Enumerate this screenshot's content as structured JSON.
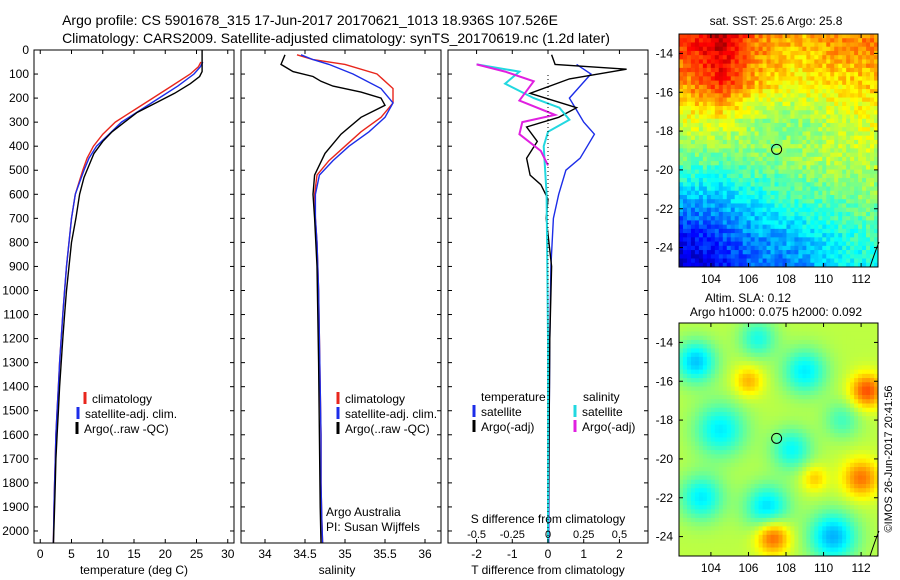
{
  "header": {
    "title_line1": "Argo profile: CS 5901678_315 17-Jun-2017 20170621_1013 18.936S 107.526E",
    "title_line2": "Climatology: CARS2009. Satellite-adjusted climatology: synTS_20170619.nc (1.2d later)"
  },
  "colors": {
    "climatology": "#e8261c",
    "satellite": "#1c2de8",
    "argo": "#000000",
    "sal_satellite": "#22d8e0",
    "sal_argo": "#e020e0"
  },
  "chart_data": [
    {
      "type": "line",
      "id": "temperature",
      "xlabel": "temperature (deg C)",
      "ylabel": "",
      "xlim": [
        -1,
        31
      ],
      "ylim": [
        2050,
        0
      ],
      "xticks": [
        0,
        5,
        10,
        15,
        20,
        25,
        30
      ],
      "yticks": [
        0,
        100,
        200,
        300,
        400,
        500,
        600,
        700,
        800,
        900,
        1000,
        1100,
        1200,
        1300,
        1400,
        1500,
        1600,
        1700,
        1800,
        1900,
        2000
      ],
      "legend": {
        "placement": "lower-center",
        "entries": [
          "climatology",
          "satellite-adj. clim.",
          "Argo(..raw -QC)"
        ]
      },
      "series": [
        {
          "name": "climatology",
          "color": "#e8261c",
          "x": [
            25.7,
            25.3,
            24.0,
            21.0,
            18.0,
            15.0,
            12.0,
            10.0,
            8.5,
            7.5,
            6.8,
            6.2,
            5.6,
            5.0,
            4.6,
            4.2,
            3.9,
            3.6,
            3.35,
            3.1,
            2.9,
            2.7,
            2.5,
            2.4,
            2.3,
            2.2,
            2.1
          ],
          "y": [
            50,
            70,
            100,
            150,
            200,
            250,
            300,
            350,
            400,
            450,
            500,
            550,
            600,
            700,
            800,
            900,
            1000,
            1100,
            1200,
            1300,
            1400,
            1500,
            1600,
            1700,
            1800,
            1900,
            2050
          ]
        },
        {
          "name": "satellite-adj. clim.",
          "color": "#1c2de8",
          "x": [
            26.0,
            25.6,
            24.6,
            22.0,
            19.0,
            16.0,
            13.0,
            11.0,
            9.0,
            7.8,
            7.0,
            6.3,
            5.6,
            5.0,
            4.6,
            4.2,
            3.9,
            3.6,
            3.35,
            3.1,
            2.9,
            2.7,
            2.5,
            2.4,
            2.3,
            2.2,
            2.1
          ],
          "y": [
            50,
            70,
            100,
            150,
            200,
            250,
            300,
            350,
            400,
            450,
            500,
            550,
            600,
            700,
            800,
            900,
            1000,
            1100,
            1200,
            1300,
            1400,
            1500,
            1600,
            1700,
            1800,
            1900,
            2050
          ]
        },
        {
          "name": "Argo(..raw -QC)",
          "color": "#000000",
          "x": [
            25.9,
            25.9,
            25.5,
            24.0,
            21.5,
            18.5,
            15.5,
            13.5,
            11.5,
            10.0,
            8.6,
            7.8,
            7.0,
            6.3,
            5.7,
            5.0,
            4.6,
            4.2,
            3.9,
            3.6,
            3.35,
            3.1,
            2.9,
            2.7,
            2.5,
            2.4,
            2.3,
            2.2,
            2.1
          ],
          "y": [
            0,
            90,
            110,
            140,
            180,
            220,
            260,
            300,
            340,
            380,
            430,
            480,
            530,
            600,
            700,
            800,
            900,
            1000,
            1100,
            1200,
            1300,
            1400,
            1500,
            1600,
            1700,
            1800,
            1900,
            1980,
            2050
          ]
        }
      ]
    },
    {
      "type": "line",
      "id": "salinity",
      "xlabel": "salinity",
      "xlim": [
        33.7,
        36.2
      ],
      "ylim": [
        2050,
        0
      ],
      "xticks": [
        34,
        34.5,
        35,
        35.5,
        36
      ],
      "legend": {
        "placement": "lower-center",
        "entries": [
          "climatology",
          "satellite-adj. clim.",
          "Argo(..raw -QC)"
        ]
      },
      "annotation": [
        "Argo Australia",
        "PI: Susan Wijffels"
      ],
      "series": [
        {
          "name": "climatology",
          "color": "#e8261c",
          "x": [
            34.4,
            34.6,
            35.0,
            35.4,
            35.6,
            35.6,
            35.45,
            35.2,
            35.0,
            34.8,
            34.65,
            34.62,
            34.63,
            34.65,
            34.67,
            34.68,
            34.69,
            34.7,
            34.7,
            34.71,
            34.72
          ],
          "y": [
            20,
            40,
            60,
            100,
            160,
            220,
            280,
            340,
            400,
            460,
            520,
            600,
            700,
            800,
            1000,
            1200,
            1400,
            1600,
            1800,
            1950,
            2050
          ]
        },
        {
          "name": "satellite-adj. clim.",
          "color": "#1c2de8",
          "x": [
            34.45,
            34.6,
            34.8,
            35.1,
            35.45,
            35.6,
            35.5,
            35.3,
            35.05,
            34.85,
            34.68,
            34.63,
            34.63,
            34.65,
            34.67,
            34.68,
            34.69,
            34.7,
            34.7,
            34.71,
            34.72
          ],
          "y": [
            20,
            40,
            60,
            100,
            160,
            220,
            280,
            340,
            400,
            460,
            520,
            600,
            700,
            800,
            1000,
            1200,
            1400,
            1600,
            1800,
            1950,
            2050
          ]
        },
        {
          "name": "Argo(..raw -QC)",
          "color": "#000000",
          "x": [
            34.25,
            34.2,
            34.35,
            34.6,
            34.7,
            34.85,
            35.2,
            35.45,
            35.5,
            35.2,
            34.95,
            34.75,
            34.62,
            34.6,
            34.62,
            34.65,
            34.66,
            34.67,
            34.68,
            34.69,
            34.7
          ],
          "y": [
            20,
            60,
            90,
            110,
            130,
            150,
            175,
            200,
            230,
            280,
            350,
            430,
            520,
            600,
            700,
            900,
            1100,
            1300,
            1600,
            1900,
            2050
          ]
        }
      ]
    },
    {
      "type": "line",
      "id": "difference",
      "xlabel": "T difference from climatology",
      "xlabel_top": "S difference from climatology",
      "xlim": [
        -2.8,
        2.8
      ],
      "ylim": [
        2050,
        0
      ],
      "xticks": [
        -2,
        -1,
        0,
        1,
        2
      ],
      "xtick_labels": [
        "-2",
        "-1",
        "0",
        "1",
        "2"
      ],
      "s_xticks": [
        -0.5,
        -0.25,
        0,
        0.25,
        0.5
      ],
      "s_xtick_labels": [
        "-0.5",
        "-0.25",
        "0",
        "0.25",
        "0.5"
      ],
      "s_scale": 4,
      "legend": {
        "placement": "lower-center",
        "temp_header": "temperature",
        "sal_header": "salinity",
        "entries": [
          "satellite",
          "Argo(-adj)",
          "satellite",
          "Argo(-adj)"
        ]
      },
      "series": [
        {
          "name": "T satellite",
          "color": "#1c2de8",
          "x": [
            0.8,
            1.0,
            1.2,
            0.9,
            0.6,
            0.8,
            1.0,
            1.3,
            1.1,
            0.9,
            0.5,
            0.3,
            0.15,
            0.08,
            0.05,
            0.03,
            0.02
          ],
          "y": [
            60,
            80,
            100,
            150,
            200,
            250,
            300,
            350,
            400,
            450,
            500,
            600,
            700,
            900,
            1200,
            1600,
            2050
          ]
        },
        {
          "name": "T Argo(-adj)",
          "color": "#000000",
          "x": [
            0.1,
            0.2,
            2.2,
            0.6,
            -0.5,
            0.8,
            0.3,
            -0.6,
            -0.3,
            -0.6,
            -0.5,
            -0.2,
            0.0,
            -0.05,
            0.1,
            0.05,
            0.02,
            0.0
          ],
          "y": [
            20,
            60,
            80,
            120,
            180,
            240,
            280,
            320,
            380,
            450,
            520,
            560,
            620,
            700,
            900,
            1200,
            1800,
            2050
          ]
        },
        {
          "name": "S satellite",
          "color": "#22d8e0",
          "x": [
            -0.5,
            -0.2,
            -0.3,
            -0.1,
            0.08,
            0.15,
            0.0,
            -0.03,
            -0.01,
            0.0,
            0.0
          ],
          "y": [
            60,
            90,
            140,
            200,
            240,
            290,
            340,
            400,
            600,
            1200,
            2050
          ]
        },
        {
          "name": "S Argo(-adj)",
          "color": "#e020e0",
          "x": [
            -0.5,
            -0.3,
            -0.1,
            -0.2,
            0.05,
            -0.18,
            -0.2,
            -0.05,
            0.0
          ],
          "y": [
            60,
            90,
            130,
            210,
            270,
            300,
            350,
            420,
            480
          ]
        }
      ]
    },
    {
      "type": "heatmap",
      "id": "sst-map",
      "title": "sat. SST: 25.6 Argo: 25.8",
      "xlim": [
        102.3,
        112.9
      ],
      "ylim": [
        -25,
        -13
      ],
      "xticks": [
        104,
        106,
        108,
        110,
        112
      ],
      "yticks": [
        -14,
        -16,
        -18,
        -20,
        -22,
        -24
      ],
      "marker": {
        "lon": 107.5,
        "lat": -18.94
      },
      "colormap": "jet",
      "value_range": [
        21,
        29
      ],
      "grid_anchors": {
        "lons": [
          102.5,
          104.5,
          106.5,
          108.5,
          110.5,
          112.5
        ],
        "lats": [
          -13.5,
          -15.5,
          -17.5,
          -19.5,
          -21.5,
          -23.5,
          -25.0
        ],
        "values": [
          [
            27.5,
            28.5,
            27.0,
            26.5,
            26.8,
            27.0
          ],
          [
            26.8,
            27.8,
            26.5,
            26.0,
            26.2,
            26.4
          ],
          [
            25.8,
            25.8,
            25.2,
            25.0,
            25.5,
            25.8
          ],
          [
            24.8,
            24.8,
            25.0,
            25.2,
            25.4,
            25.5
          ],
          [
            23.5,
            23.5,
            24.0,
            24.5,
            24.8,
            25.0
          ],
          [
            22.0,
            22.5,
            23.2,
            23.5,
            24.0,
            24.5
          ],
          [
            21.5,
            22.0,
            22.8,
            23.0,
            23.8,
            24.2
          ]
        ]
      }
    },
    {
      "type": "heatmap",
      "id": "sla-map",
      "title_line1": "Altim. SLA: 0.12",
      "title_line2": "Argo h1000: 0.075 h2000: 0.092",
      "xlim": [
        102.3,
        112.9
      ],
      "ylim": [
        -25,
        -13
      ],
      "xticks": [
        104,
        106,
        108,
        110,
        112
      ],
      "yticks": [
        -14,
        -16,
        -18,
        -20,
        -22,
        -24
      ],
      "marker": {
        "lon": 107.5,
        "lat": -18.94
      },
      "colormap": "jet",
      "value_range": [
        -0.2,
        0.3
      ],
      "blobs": [
        {
          "lon": 103.2,
          "lat": -15.0,
          "r": 1.1,
          "v": -0.12
        },
        {
          "lon": 106.5,
          "lat": -13.8,
          "r": 1.0,
          "v": -0.08
        },
        {
          "lon": 109.0,
          "lat": -15.5,
          "r": 1.2,
          "v": -0.1
        },
        {
          "lon": 104.5,
          "lat": -18.5,
          "r": 1.4,
          "v": -0.1
        },
        {
          "lon": 108.3,
          "lat": -19.5,
          "r": 1.1,
          "v": -0.09
        },
        {
          "lon": 111.0,
          "lat": -18.0,
          "r": 1.0,
          "v": -0.06
        },
        {
          "lon": 103.5,
          "lat": -22.0,
          "r": 1.2,
          "v": -0.1
        },
        {
          "lon": 107.0,
          "lat": -22.5,
          "r": 1.2,
          "v": -0.11
        },
        {
          "lon": 110.5,
          "lat": -24.0,
          "r": 1.3,
          "v": -0.13
        },
        {
          "lon": 112.3,
          "lat": -16.5,
          "r": 0.9,
          "v": 0.12
        },
        {
          "lon": 112.0,
          "lat": -21.0,
          "r": 1.0,
          "v": 0.1
        },
        {
          "lon": 106.0,
          "lat": -16.0,
          "r": 0.8,
          "v": 0.07
        },
        {
          "lon": 107.3,
          "lat": -24.0,
          "r": 0.9,
          "v": 0.12
        },
        {
          "lon": 109.5,
          "lat": -21.0,
          "r": 0.7,
          "v": 0.06
        }
      ]
    }
  ],
  "credit": "©IMOS 26-Jun-2017 20:41:56"
}
